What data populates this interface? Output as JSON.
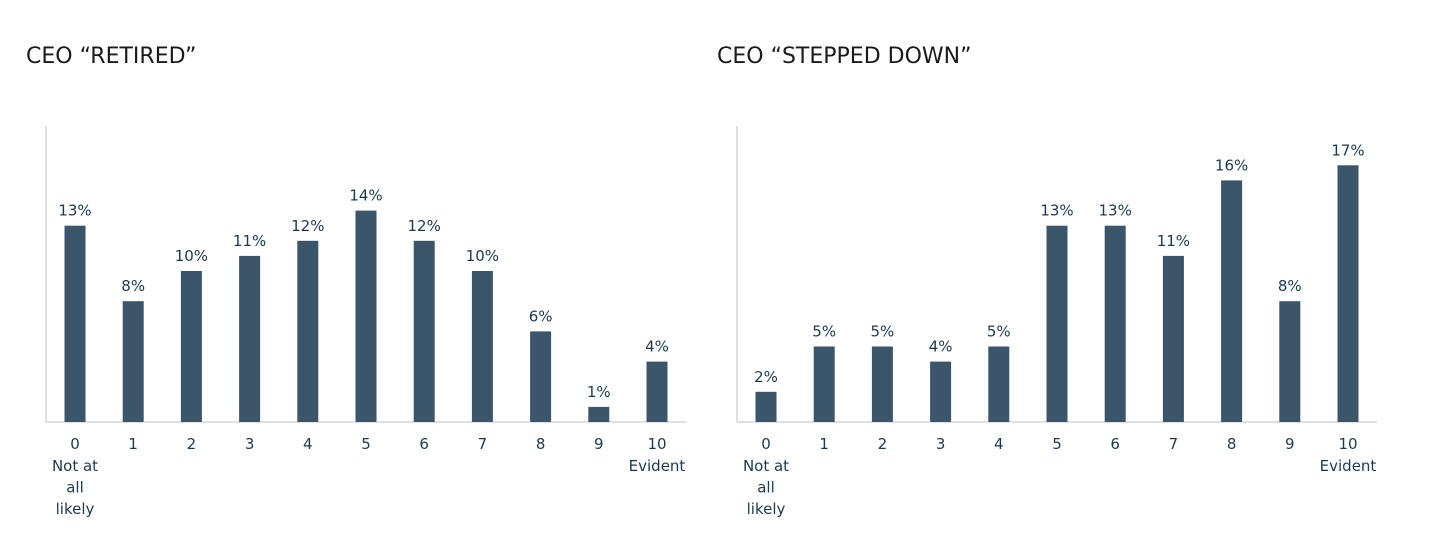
{
  "colors": {
    "bar": "#3b566b",
    "label": "#1b3a52",
    "axis": "#d6d6d6"
  },
  "chart_data": [
    {
      "type": "bar",
      "title": "CEO “RETIRED”",
      "categories": [
        "0",
        "1",
        "2",
        "3",
        "4",
        "5",
        "6",
        "7",
        "8",
        "9",
        "10"
      ],
      "category_sublabels": [
        "Not at all likely",
        "",
        "",
        "",
        "",
        "",
        "",
        "",
        "",
        "",
        "Evident"
      ],
      "values": [
        13,
        8,
        10,
        11,
        12,
        14,
        12,
        10,
        6,
        1,
        4
      ],
      "data_labels": [
        "13%",
        "8%",
        "10%",
        "11%",
        "12%",
        "14%",
        "12%",
        "10%",
        "6%",
        "1%",
        "4%"
      ],
      "ylim": [
        0,
        17
      ],
      "grid": false,
      "legend": "none"
    },
    {
      "type": "bar",
      "title": "CEO “STEPPED DOWN”",
      "categories": [
        "0",
        "1",
        "2",
        "3",
        "4",
        "5",
        "6",
        "7",
        "8",
        "9",
        "10"
      ],
      "category_sublabels": [
        "Not at all likely",
        "",
        "",
        "",
        "",
        "",
        "",
        "",
        "",
        "",
        "Evident"
      ],
      "values": [
        2,
        5,
        5,
        4,
        5,
        13,
        13,
        11,
        16,
        8,
        17
      ],
      "data_labels": [
        "2%",
        "5%",
        "5%",
        "4%",
        "5%",
        "13%",
        "13%",
        "11%",
        "16%",
        "8%",
        "17%"
      ],
      "ylim": [
        0,
        17
      ],
      "grid": false,
      "legend": "none"
    }
  ]
}
